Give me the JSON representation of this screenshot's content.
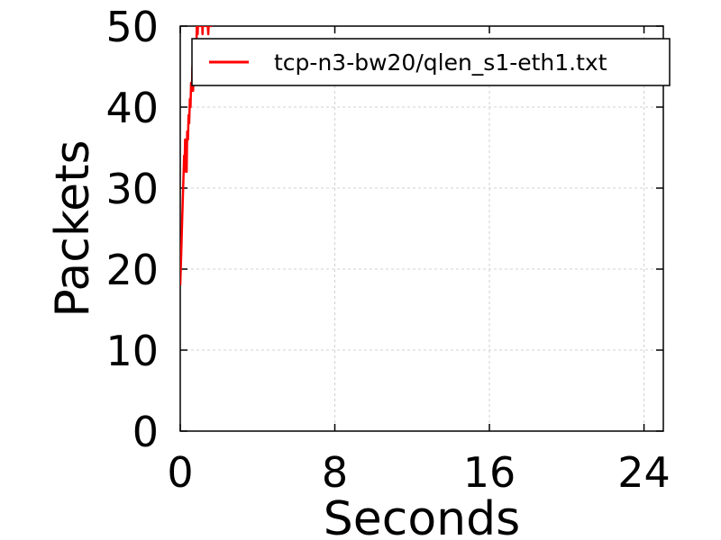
{
  "chart_data": {
    "type": "line",
    "title": "",
    "xlabel": "Seconds",
    "ylabel": "Packets",
    "xlim": [
      0,
      25
    ],
    "ylim": [
      0,
      50
    ],
    "xticks": [
      0,
      8,
      16,
      24
    ],
    "yticks": [
      0,
      10,
      20,
      30,
      40,
      50
    ],
    "grid": true,
    "legend_position": "top-right",
    "series": [
      {
        "name": "tcp-n3-bw20/qlen_s1-eth1.txt",
        "color": "#ff0000",
        "x": [
          0.0,
          0.05,
          0.1,
          0.15,
          0.2,
          0.22,
          0.25,
          0.28,
          0.3,
          0.33,
          0.36,
          0.4,
          0.43,
          0.46,
          0.5,
          0.53,
          0.56,
          0.6,
          0.63,
          0.66,
          0.7,
          0.73,
          0.76,
          0.8,
          0.83,
          0.86,
          0.9,
          0.93,
          0.96,
          1.0,
          1.05,
          1.1,
          1.15,
          1.2,
          1.3,
          1.35,
          1.45,
          1.5,
          1.6,
          1.65,
          1.7
        ],
        "y": [
          18,
          22,
          26,
          30,
          34,
          32,
          36,
          33,
          35,
          32,
          37,
          36,
          39,
          38,
          41,
          40,
          43,
          42,
          45,
          42,
          44,
          46,
          43,
          48,
          47,
          50,
          49,
          51,
          50,
          52,
          50,
          53,
          49,
          52,
          50,
          53,
          49,
          52,
          50,
          54,
          52
        ]
      }
    ]
  }
}
